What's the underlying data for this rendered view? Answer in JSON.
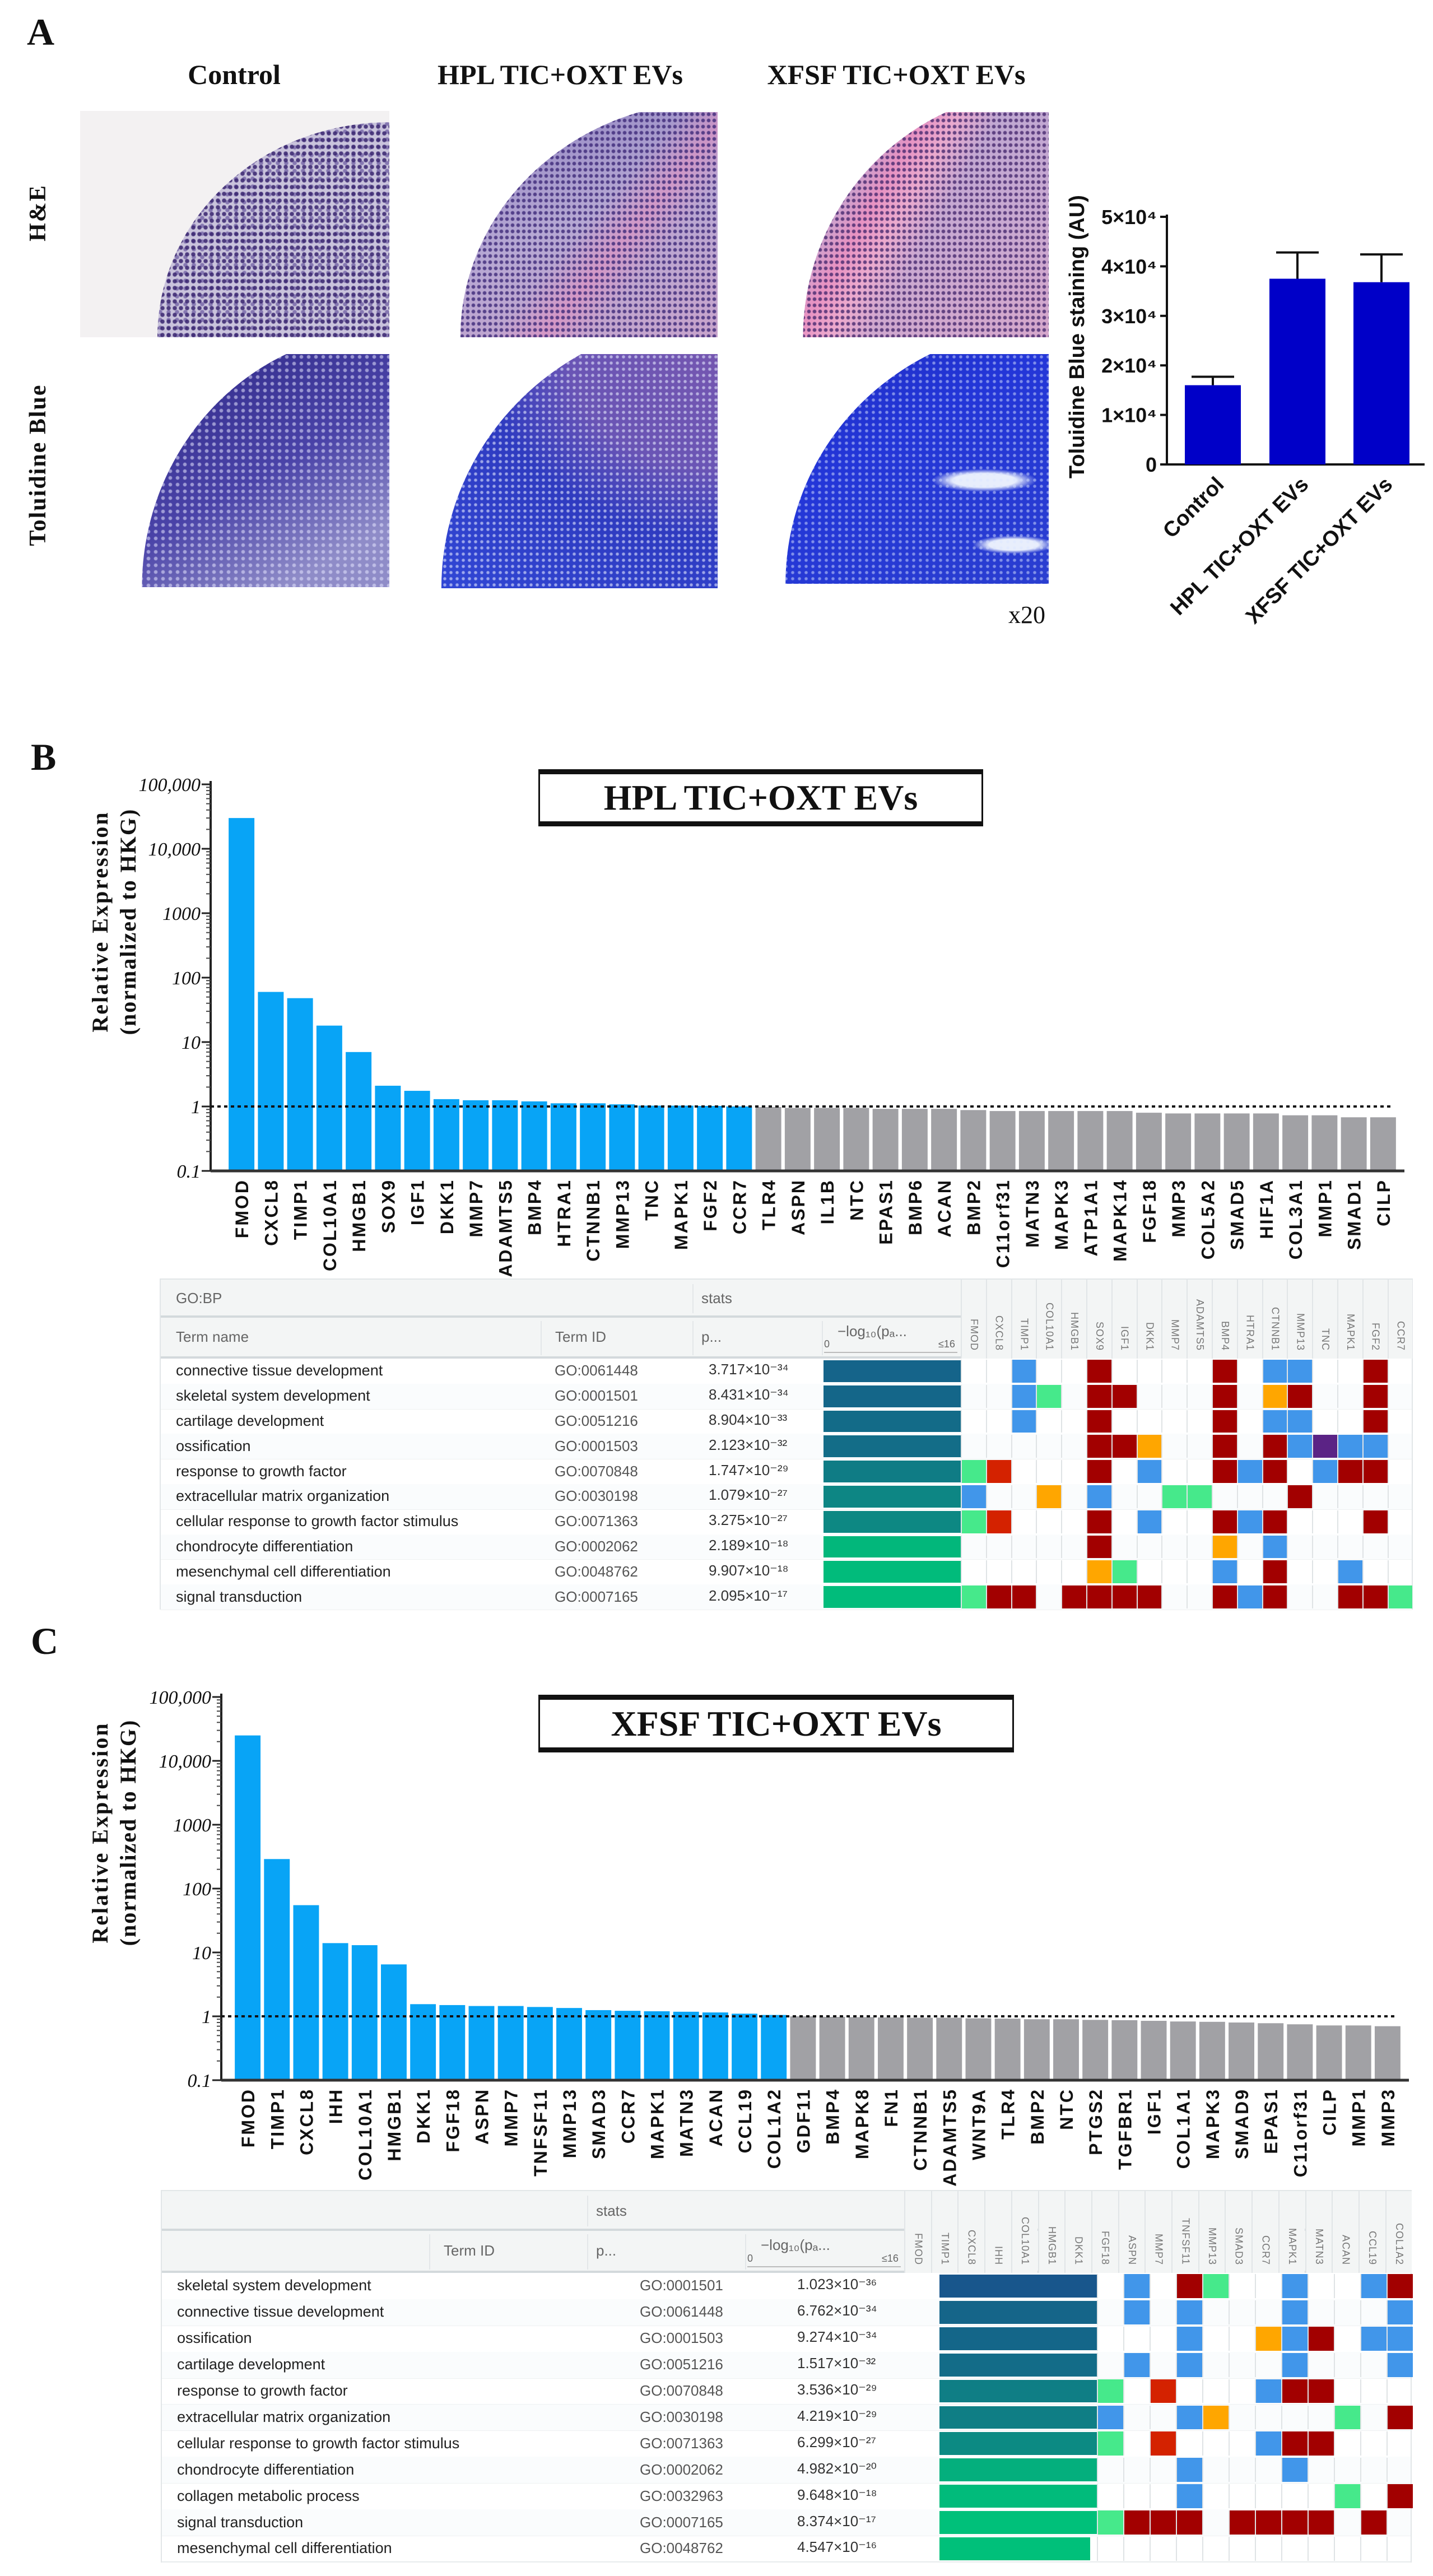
{
  "panel_labels": {
    "a": "A",
    "b": "B",
    "c": "C"
  },
  "panel_a": {
    "columns": [
      "Control",
      "HPL TIC+OXT EVs",
      "XFSF TIC+OXT EVs"
    ],
    "rows": [
      "H&E",
      "Toluidine Blue"
    ],
    "magnification": "x20"
  },
  "chart_data": [
    {
      "type": "bar",
      "title": "",
      "xlabel": "",
      "ylabel": "Toluidine Blue staining (AU)",
      "categories": [
        "Control",
        "HPL TIC+OXT EVs",
        "XFSF TIC+OXT EVs"
      ],
      "values": [
        16000,
        37500,
        36800
      ],
      "errors": [
        1700,
        5300,
        5600
      ],
      "ylim": [
        0,
        50000
      ],
      "yticks": [
        0,
        10000,
        20000,
        30000,
        40000,
        50000
      ],
      "ytick_labels": [
        "0",
        "1×10⁴",
        "2×10⁴",
        "3×10⁴",
        "4×10⁴",
        "5×10⁴"
      ],
      "bar_color": "#0000c8"
    },
    {
      "type": "bar",
      "title": "HPL TIC+OXT EVs",
      "xlabel": "",
      "ylabel": "Relative Expression",
      "ylabel_line2": "(normalized to HKG)",
      "yscale": "log",
      "ylim": [
        0.1,
        100000
      ],
      "yticks": [
        0.1,
        1,
        10,
        100,
        1000,
        10000,
        100000
      ],
      "ytick_labels": [
        "0.1",
        "1",
        "10",
        "100",
        "1000",
        "10,000",
        "100,000"
      ],
      "reference_line": 1,
      "highlight_color": "#08a4f6",
      "other_color": "#a1a1a5",
      "highlighted_count": 18,
      "categories": [
        "FMOD",
        "CXCL8",
        "TIMP1",
        "COL10A1",
        "HMGB1",
        "SOX9",
        "IGF1",
        "DKK1",
        "MMP7",
        "ADAMTS5",
        "BMP4",
        "HTRA1",
        "CTNNB1",
        "MMP13",
        "TNC",
        "MAPK1",
        "FGF2",
        "CCR7",
        "TLR4",
        "ASPN",
        "IL1B",
        "NTC",
        "EPAS1",
        "BMP6",
        "ACAN",
        "BMP2",
        "C11orf31",
        "MATN3",
        "MAPK3",
        "ATP1A1",
        "MAPK14",
        "FGF18",
        "MMP3",
        "COL5A2",
        "SMAD5",
        "HIF1A",
        "COL3A1",
        "MMP1",
        "SMAD1",
        "CILP"
      ],
      "values": [
        30000,
        60,
        48,
        18,
        7,
        2.1,
        1.75,
        1.3,
        1.25,
        1.25,
        1.2,
        1.12,
        1.12,
        1.08,
        1.03,
        1.03,
        1.02,
        1.0,
        0.98,
        0.95,
        0.95,
        0.95,
        0.92,
        0.92,
        0.92,
        0.88,
        0.85,
        0.85,
        0.85,
        0.85,
        0.85,
        0.8,
        0.78,
        0.78,
        0.78,
        0.78,
        0.73,
        0.73,
        0.68,
        0.68
      ]
    },
    {
      "type": "bar",
      "title": "XFSF TIC+OXT EVs",
      "xlabel": "",
      "ylabel": "Relative Expression",
      "ylabel_line2": "(normalized to HKG)",
      "yscale": "log",
      "ylim": [
        0.1,
        100000
      ],
      "yticks": [
        0.1,
        1,
        10,
        100,
        1000,
        10000,
        100000
      ],
      "ytick_labels": [
        "0.1",
        "1",
        "10",
        "100",
        "1000",
        "10,000",
        "100,000"
      ],
      "reference_line": 1,
      "highlight_color": "#08a4f6",
      "other_color": "#a1a1a5",
      "highlighted_count": 19,
      "categories": [
        "FMOD",
        "TIMP1",
        "CXCL8",
        "IHH",
        "COL10A1",
        "HMGB1",
        "DKK1",
        "FGF18",
        "ASPN",
        "MMP7",
        "TNFSF11",
        "MMP13",
        "SMAD3",
        "CCR7",
        "MAPK1",
        "MATN3",
        "ACAN",
        "CCL19",
        "COL1A2",
        "GDF11",
        "BMP4",
        "MAPK8",
        "FN1",
        "CTNNB1",
        "ADAMTS5",
        "WNT9A",
        "TLR4",
        "BMP2",
        "NTC",
        "PTGS2",
        "TGFBR1",
        "IGF1",
        "COL1A1",
        "MAPK3",
        "SMAD9",
        "EPAS1",
        "C11orf31",
        "CILP",
        "MMP1",
        "MMP3"
      ],
      "values": [
        25000,
        290,
        55,
        14,
        13,
        6.5,
        1.55,
        1.5,
        1.45,
        1.45,
        1.4,
        1.35,
        1.25,
        1.22,
        1.2,
        1.18,
        1.15,
        1.1,
        1.05,
        1.0,
        0.98,
        0.97,
        0.96,
        0.95,
        0.95,
        0.93,
        0.92,
        0.9,
        0.9,
        0.88,
        0.87,
        0.85,
        0.83,
        0.82,
        0.8,
        0.78,
        0.75,
        0.72,
        0.72,
        0.7
      ]
    }
  ],
  "cell_colors": {
    "R": "#a20000",
    "r": "#d42200",
    "B": "#4196ea",
    "G": "#46e98b",
    "O": "#ffa600",
    "P": "#5b2385"
  },
  "tables": [
    {
      "group_header": "GO:BP",
      "stats_header": "stats",
      "term_name_header": "Term name",
      "term_id_header": "Term ID",
      "p_header": "p...",
      "log_header": "−log₁₀(pₐ...",
      "axis_min": "0",
      "axis_max": "≤16",
      "genes": [
        "FMOD",
        "CXCL8",
        "TIMP1",
        "COL10A1",
        "HMGB1",
        "SOX9",
        "IGF1",
        "DKK1",
        "MMP7",
        "ADAMTS5",
        "BMP4",
        "HTRA1",
        "CTNNB1",
        "MMP13",
        "TNC",
        "MAPK1",
        "FGF2",
        "CCR7"
      ],
      "rows": [
        {
          "term": "connective tissue development",
          "id": "GO:0061448",
          "p": "3.717×10⁻³⁴",
          "neglog10_p": 33.43,
          "cells": [
            "",
            "",
            "B",
            "",
            "",
            "R",
            "",
            "",
            "",
            "",
            "R",
            "",
            "B",
            "B",
            "",
            "",
            "R",
            ""
          ]
        },
        {
          "term": "skeletal system development",
          "id": "GO:0001501",
          "p": "8.431×10⁻³⁴",
          "neglog10_p": 33.07,
          "cells": [
            "",
            "",
            "B",
            "G",
            "",
            "R",
            "R",
            "",
            "",
            "",
            "R",
            "",
            "O",
            "R",
            "",
            "",
            "R",
            ""
          ]
        },
        {
          "term": "cartilage development",
          "id": "GO:0051216",
          "p": "8.904×10⁻³³",
          "neglog10_p": 32.05,
          "cells": [
            "",
            "",
            "B",
            "",
            "",
            "R",
            "",
            "",
            "",
            "",
            "R",
            "",
            "B",
            "B",
            "",
            "",
            "R",
            ""
          ]
        },
        {
          "term": "ossification",
          "id": "GO:0001503",
          "p": "2.123×10⁻³²",
          "neglog10_p": 31.67,
          "cells": [
            "",
            "",
            "",
            "",
            "",
            "R",
            "R",
            "O",
            "",
            "",
            "R",
            "",
            "R",
            "B",
            "P",
            "B",
            "B",
            ""
          ]
        },
        {
          "term": "response to growth factor",
          "id": "GO:0070848",
          "p": "1.747×10⁻²⁹",
          "neglog10_p": 28.76,
          "cells": [
            "G",
            "r",
            "",
            "",
            "",
            "R",
            "",
            "B",
            "",
            "",
            "R",
            "B",
            "R",
            "",
            "B",
            "R",
            "R",
            ""
          ]
        },
        {
          "term": "extracellular matrix organization",
          "id": "GO:0030198",
          "p": "1.079×10⁻²⁷",
          "neglog10_p": 26.97,
          "cells": [
            "B",
            "",
            "",
            "O",
            "",
            "B",
            "",
            "",
            "G",
            "G",
            "",
            "",
            "",
            "R",
            "",
            "",
            "",
            ""
          ]
        },
        {
          "term": "cellular response to growth factor stimulus",
          "id": "GO:0071363",
          "p": "3.275×10⁻²⁷",
          "neglog10_p": 26.48,
          "cells": [
            "G",
            "r",
            "",
            "",
            "",
            "R",
            "",
            "B",
            "",
            "",
            "R",
            "B",
            "R",
            "",
            "",
            "",
            "R",
            ""
          ]
        },
        {
          "term": "chondrocyte differentiation",
          "id": "GO:0002062",
          "p": "2.189×10⁻¹⁸",
          "neglog10_p": 17.66,
          "cells": [
            "",
            "",
            "",
            "",
            "",
            "R",
            "",
            "",
            "",
            "",
            "O",
            "",
            "B",
            "",
            "",
            "",
            "",
            ""
          ]
        },
        {
          "term": "mesenchymal cell differentiation",
          "id": "GO:0048762",
          "p": "9.907×10⁻¹⁸",
          "neglog10_p": 17.0,
          "cells": [
            "",
            "",
            "",
            "",
            "",
            "O",
            "G",
            "",
            "",
            "",
            "B",
            "",
            "R",
            "",
            "",
            "B",
            "",
            ""
          ]
        },
        {
          "term": "signal transduction",
          "id": "GO:0007165",
          "p": "2.095×10⁻¹⁷",
          "neglog10_p": 16.68,
          "cells": [
            "G",
            "R",
            "R",
            "",
            "R",
            "R",
            "R",
            "R",
            "",
            "",
            "R",
            "B",
            "R",
            "",
            "",
            "R",
            "R",
            "G"
          ]
        }
      ]
    },
    {
      "stats_header": "stats",
      "term_id_header": "Term ID",
      "p_header": "p...",
      "log_header": "−log₁₀(pₐ...",
      "axis_min": "0",
      "axis_max": "≤16",
      "genes": [
        "FMOD",
        "TIMP1",
        "CXCL8",
        "IHH",
        "COL10A1",
        "HMGB1",
        "DKK1",
        "FGF18",
        "ASPN",
        "MMP7",
        "TNFSF11",
        "MMP13",
        "SMAD3",
        "CCR7",
        "MAPK1",
        "MATN3",
        "ACAN",
        "CCL19",
        "COL1A2"
      ],
      "cell_genes": [
        "FGF18",
        "ASPN",
        "MMP7",
        "TNFSF11",
        "MMP13",
        "SMAD3",
        "CCR7",
        "MAPK1",
        "MATN3",
        "ACAN",
        "CCL19",
        "COL1A2"
      ],
      "rows": [
        {
          "term": "skeletal system development",
          "id": "GO:0001501",
          "p": "1.023×10⁻³⁶",
          "neglog10_p": 35.99,
          "cells": [
            "",
            "B",
            "",
            "R",
            "G",
            "",
            "",
            "B",
            "",
            "",
            "B",
            "R"
          ]
        },
        {
          "term": "connective tissue development",
          "id": "GO:0061448",
          "p": "6.762×10⁻³⁴",
          "neglog10_p": 33.17,
          "cells": [
            "",
            "B",
            "",
            "B",
            "",
            "",
            "",
            "B",
            "",
            "",
            "",
            "B"
          ]
        },
        {
          "term": "ossification",
          "id": "GO:0001503",
          "p": "9.274×10⁻³⁴",
          "neglog10_p": 33.03,
          "cells": [
            "",
            "",
            "",
            "B",
            "",
            "",
            "O",
            "B",
            "R",
            "",
            "B",
            "B"
          ]
        },
        {
          "term": "cartilage development",
          "id": "GO:0051216",
          "p": "1.517×10⁻³²",
          "neglog10_p": 31.82,
          "cells": [
            "",
            "B",
            "",
            "B",
            "",
            "",
            "",
            "B",
            "",
            "",
            "",
            "B"
          ]
        },
        {
          "term": "response to growth factor",
          "id": "GO:0070848",
          "p": "3.536×10⁻²⁹",
          "neglog10_p": 28.45,
          "cells": [
            "G",
            "",
            "r",
            "",
            "",
            "",
            "B",
            "R",
            "R",
            "",
            "",
            ""
          ]
        },
        {
          "term": "extracellular matrix organization",
          "id": "GO:0030198",
          "p": "4.219×10⁻²⁹",
          "neglog10_p": 28.37,
          "cells": [
            "B",
            "",
            "",
            "B",
            "O",
            "",
            "",
            "",
            "",
            "G",
            "",
            "R"
          ]
        },
        {
          "term": "cellular response to growth factor stimulus",
          "id": "GO:0071363",
          "p": "6.299×10⁻²⁷",
          "neglog10_p": 26.2,
          "cells": [
            "G",
            "",
            "r",
            "",
            "",
            "",
            "B",
            "R",
            "R",
            "",
            "",
            ""
          ]
        },
        {
          "term": "chondrocyte differentiation",
          "id": "GO:0002062",
          "p": "4.982×10⁻²⁰",
          "neglog10_p": 19.3,
          "cells": [
            "",
            "",
            "",
            "B",
            "",
            "",
            "",
            "B",
            "",
            "",
            "",
            ""
          ]
        },
        {
          "term": "collagen metabolic process",
          "id": "GO:0032963",
          "p": "9.648×10⁻¹⁸",
          "neglog10_p": 17.02,
          "cells": [
            "",
            "",
            "",
            "B",
            "",
            "",
            "",
            "",
            "",
            "G",
            "",
            "R"
          ]
        },
        {
          "term": "signal transduction",
          "id": "GO:0007165",
          "p": "8.374×10⁻¹⁷",
          "neglog10_p": 16.08,
          "cells": [
            "G",
            "R",
            "R",
            "R",
            "",
            "R",
            "R",
            "R",
            "R",
            "",
            "R",
            ""
          ]
        },
        {
          "term": "mesenchymal cell differentiation",
          "id": "GO:0048762",
          "p": "4.547×10⁻¹⁶",
          "neglog10_p": 15.34,
          "cells": [
            "",
            "",
            "",
            "",
            "",
            "",
            "",
            "",
            "",
            "",
            "",
            ""
          ]
        }
      ]
    }
  ]
}
